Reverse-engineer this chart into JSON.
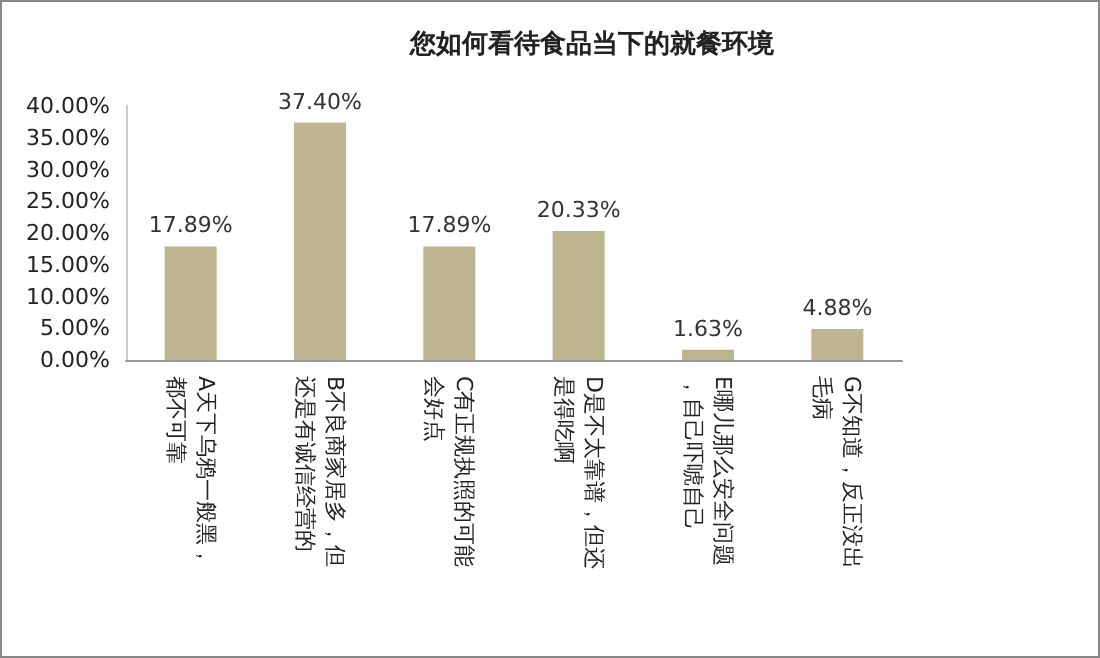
{
  "chart_data": {
    "type": "bar",
    "title": "您如何看待食品当下的就餐环境",
    "categories": [
      "A天下乌鸦一般黑，都不可靠",
      "B不良商家居多，但还是有诚信经营的",
      "C有正规执照的可能会好点",
      "D是不太靠谱，但还是得吃啊",
      "E哪儿那么安全问题，自己吓唬自己",
      "G不知道，反正没出毛病"
    ],
    "values": [
      17.89,
      37.4,
      17.89,
      20.33,
      1.63,
      4.88
    ],
    "value_labels": [
      "17.89%",
      "37.40%",
      "17.89%",
      "20.33%",
      "1.63%",
      "4.88%"
    ],
    "color": "#bdb58f",
    "ylim": [
      0,
      40
    ],
    "yticks": [
      {
        "value": 0,
        "label": "0.00%"
      },
      {
        "value": 5,
        "label": "5.00%"
      },
      {
        "value": 10,
        "label": "10.00%"
      },
      {
        "value": 15,
        "label": "15.00%"
      },
      {
        "value": 20,
        "label": "20.00%"
      },
      {
        "value": 25,
        "label": "25.00%"
      },
      {
        "value": 30,
        "label": "30.00%"
      },
      {
        "value": 35,
        "label": "35.00%"
      },
      {
        "value": 40,
        "label": "40.00%"
      }
    ],
    "grid": false
  }
}
